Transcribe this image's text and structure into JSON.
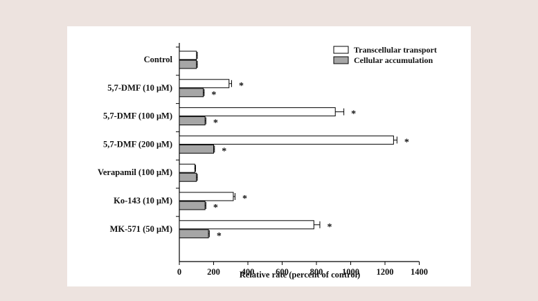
{
  "chart_data": {
    "type": "bar",
    "orientation": "horizontal",
    "title": "",
    "xlabel": "Relative rate (percent of control)",
    "ylabel": "",
    "xlim": [
      0,
      1400
    ],
    "xticks": [
      0,
      200,
      400,
      600,
      800,
      1000,
      1200,
      1400
    ],
    "legend_position": "top-right",
    "categories": [
      "Control",
      "5,7-DMF (10 μM)",
      "5,7-DMF (100 μM)",
      "5,7-DMF (200 μM)",
      "Verapamil (100 μM)",
      "Ko-143 (10 μM)",
      "MK-571 (50 μM)"
    ],
    "series": [
      {
        "name": "Transcellular transport",
        "color": "#ffffff",
        "values": [
          100,
          290,
          910,
          1250,
          90,
          315,
          785
        ],
        "errors": [
          5,
          15,
          50,
          20,
          5,
          10,
          35
        ],
        "significant": [
          false,
          true,
          true,
          true,
          false,
          true,
          true
        ]
      },
      {
        "name": "Cellular accumulation",
        "color": "#a6a6a6",
        "values": [
          100,
          140,
          150,
          200,
          100,
          150,
          170
        ],
        "errors": [
          5,
          5,
          5,
          5,
          5,
          5,
          5
        ],
        "significant": [
          false,
          true,
          true,
          true,
          false,
          true,
          true
        ]
      }
    ],
    "significance_marker": "*"
  }
}
